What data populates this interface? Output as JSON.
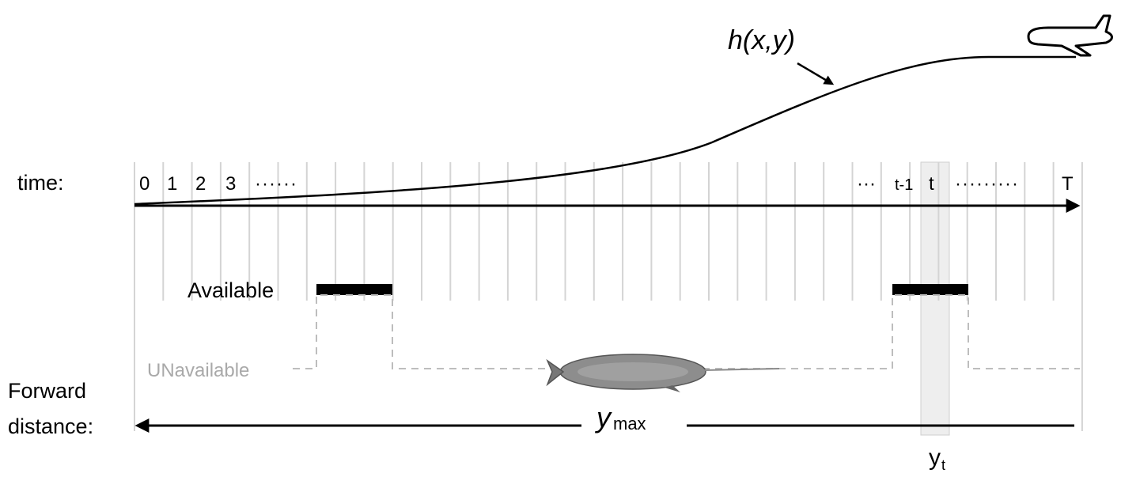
{
  "labels": {
    "time": "time:",
    "available": "Available",
    "unavailable": "UNavailable",
    "forward_line1": "Forward",
    "forward_line2": "distance:",
    "curve_label": "h(x,y)",
    "ymax_main": "y",
    "ymax_sub": "max",
    "yt_main": "y",
    "yt_sub": "t",
    "dots_left": "······",
    "dots_mid": "···",
    "dots_right": "·········"
  },
  "time_ticks": [
    "0",
    "1",
    "2",
    "3",
    "t-1",
    "t",
    "T"
  ],
  "icons": {
    "aircraft": "airplane-icon",
    "whale": "narwhal-icon"
  },
  "colors": {
    "grid": "#d4d4d4",
    "axis": "#000000",
    "unavailable": "#a9a9a9",
    "highlight": "#eeeeee"
  }
}
